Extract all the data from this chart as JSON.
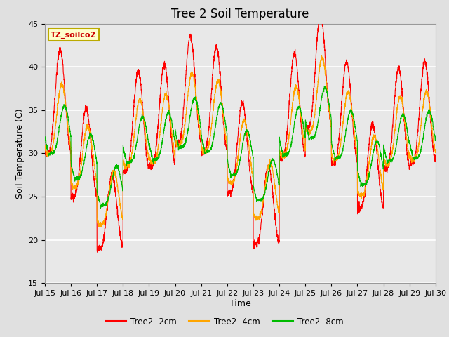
{
  "title": "Tree 2 Soil Temperature",
  "xlabel": "Time",
  "ylabel": "Soil Temperature (C)",
  "ylim": [
    15,
    45
  ],
  "xlim": [
    0,
    360
  ],
  "label_text": "TZ_soilco2",
  "series_labels": [
    "Tree2 -2cm",
    "Tree2 -4cm",
    "Tree2 -8cm"
  ],
  "series_colors": [
    "#ff0000",
    "#ffa500",
    "#00bb00"
  ],
  "xtick_positions": [
    0,
    24,
    48,
    72,
    96,
    120,
    144,
    168,
    192,
    216,
    240,
    264,
    288,
    312,
    336,
    360
  ],
  "xtick_labels": [
    "Jul 15",
    "Jul 16",
    "Jul 17",
    "Jul 18",
    "Jul 19",
    "Jul 20",
    "Jul 21",
    "Jul 22",
    "Jul 23",
    "Jul 24",
    "Jul 25",
    "Jul 26",
    "Jul 27",
    "Jul 28",
    "Jul 29",
    "Jul 30"
  ],
  "ytick_positions": [
    15,
    20,
    25,
    30,
    35,
    40,
    45
  ],
  "grid_color": "#ffffff",
  "bg_color": "#e8e8e8",
  "fig_bg_color": "#e0e0e0",
  "title_fontsize": 12,
  "axis_label_fontsize": 9,
  "tick_fontsize": 8
}
